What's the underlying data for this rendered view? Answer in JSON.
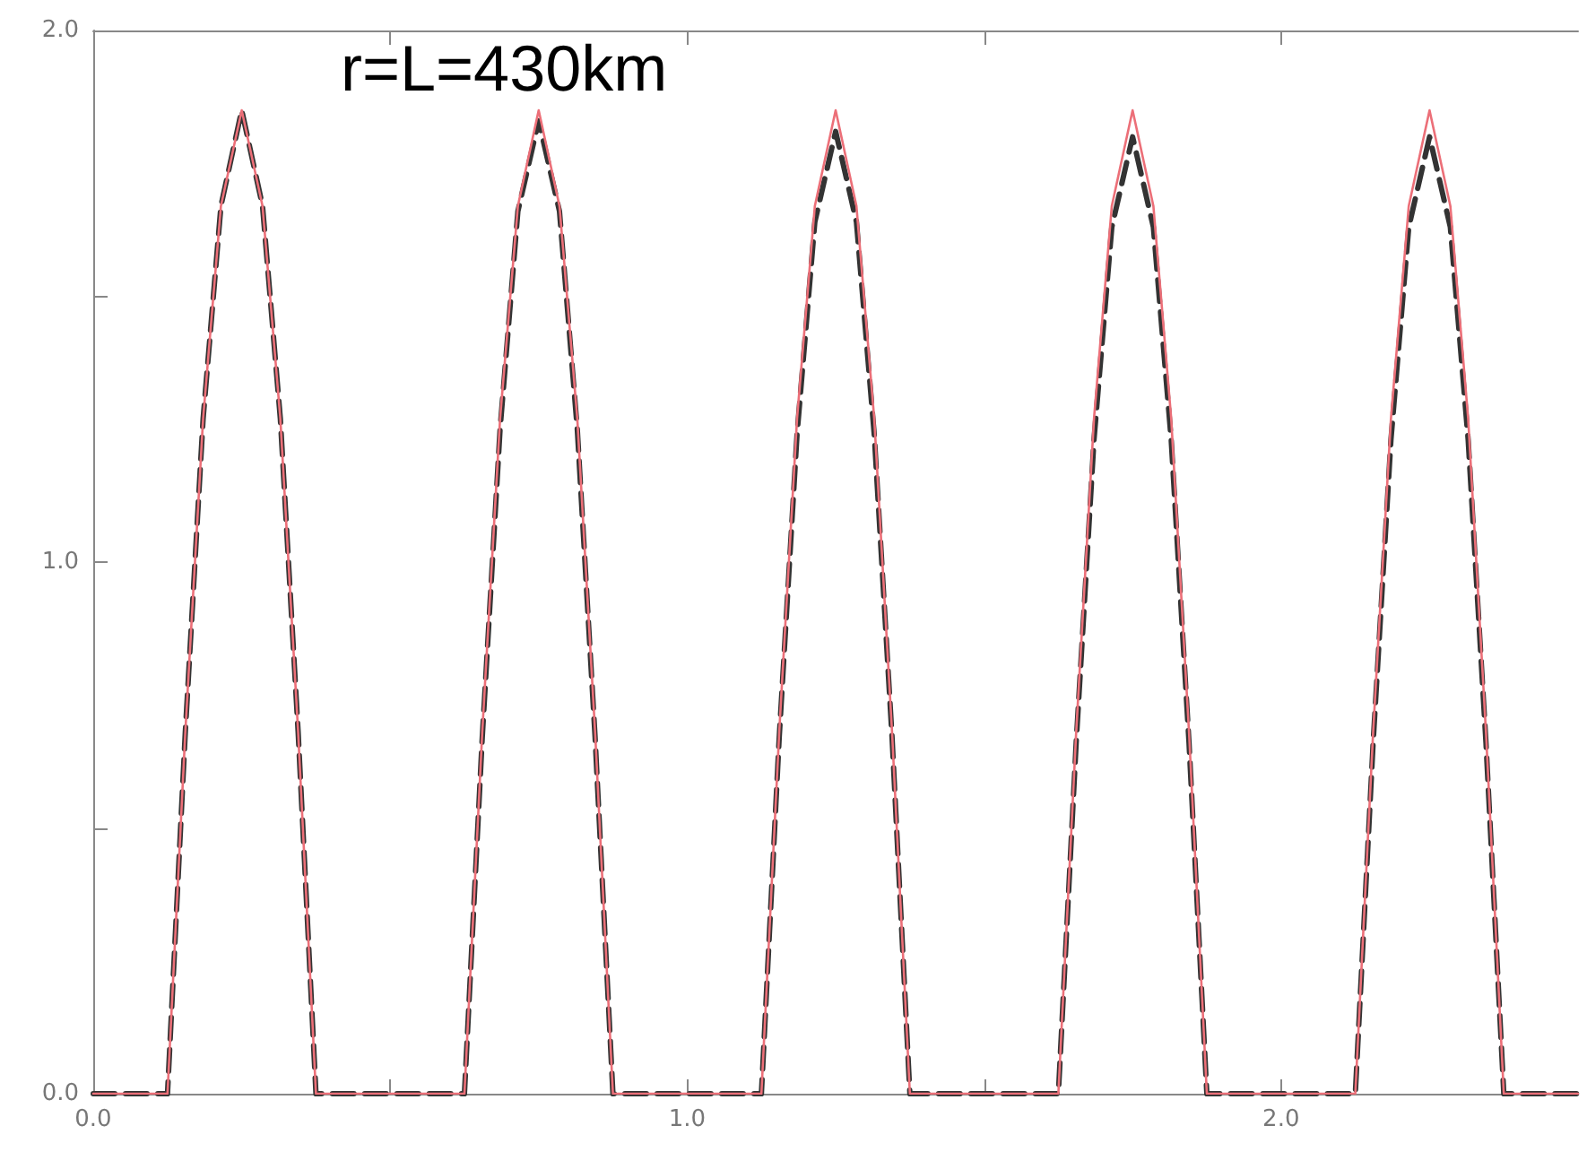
{
  "chart_data": {
    "type": "line",
    "x": [
      0,
      0.125,
      0.155,
      0.185,
      0.215,
      0.25,
      0.285,
      0.315,
      0.345,
      0.375,
      0.625,
      0.655,
      0.685,
      0.715,
      0.75,
      0.785,
      0.815,
      0.845,
      0.875,
      1.125,
      1.155,
      1.185,
      1.215,
      1.25,
      1.285,
      1.315,
      1.345,
      1.375,
      1.625,
      1.655,
      1.685,
      1.715,
      1.75,
      1.785,
      1.815,
      1.845,
      1.875,
      2.125,
      2.155,
      2.185,
      2.215,
      2.25,
      2.285,
      2.315,
      2.345,
      2.375,
      2.5
    ],
    "series": [
      {
        "color": "#333333",
        "line_style": "dashed",
        "values": [
          0,
          0,
          0.68,
          1.27,
          1.67,
          1.85,
          1.67,
          1.27,
          0.68,
          0,
          0,
          0.67,
          1.25,
          1.66,
          1.83,
          1.66,
          1.25,
          0.67,
          0,
          0,
          0.67,
          1.24,
          1.64,
          1.81,
          1.64,
          1.24,
          0.67,
          0,
          0,
          0.66,
          1.23,
          1.63,
          1.8,
          1.63,
          1.23,
          0.66,
          0,
          0,
          0.66,
          1.23,
          1.63,
          1.8,
          1.63,
          1.23,
          0.66,
          0,
          0
        ]
      },
      {
        "color": "#ec6f78",
        "line_style": "solid",
        "values": [
          0,
          0,
          0.68,
          1.27,
          1.67,
          1.85,
          1.67,
          1.27,
          0.68,
          0,
          0,
          0.68,
          1.27,
          1.67,
          1.85,
          1.67,
          1.27,
          0.68,
          0,
          0,
          0.68,
          1.27,
          1.67,
          1.85,
          1.67,
          1.27,
          0.68,
          0,
          0,
          0.68,
          1.27,
          1.67,
          1.85,
          1.67,
          1.27,
          0.68,
          0,
          0,
          0.68,
          1.27,
          1.67,
          1.85,
          1.67,
          1.27,
          0.68,
          0,
          0
        ]
      }
    ],
    "xlim": [
      0,
      2.5
    ],
    "ylim": [
      0,
      2
    ],
    "xticks": [
      {
        "value": 0,
        "label": "0.0"
      },
      {
        "value": 0.5,
        "label": null
      },
      {
        "value": 1,
        "label": "1.0"
      },
      {
        "value": 1.5,
        "label": null
      },
      {
        "value": 2,
        "label": "2.0"
      }
    ],
    "yticks": [
      {
        "value": 0,
        "label": "0.0"
      },
      {
        "value": 0.5,
        "label": null
      },
      {
        "value": 1,
        "label": "1.0"
      },
      {
        "value": 1.5,
        "label": null
      },
      {
        "value": 2,
        "label": "2.0"
      }
    ],
    "grid": false,
    "marker": "none",
    "annotations": [
      "r=L=430km"
    ]
  }
}
